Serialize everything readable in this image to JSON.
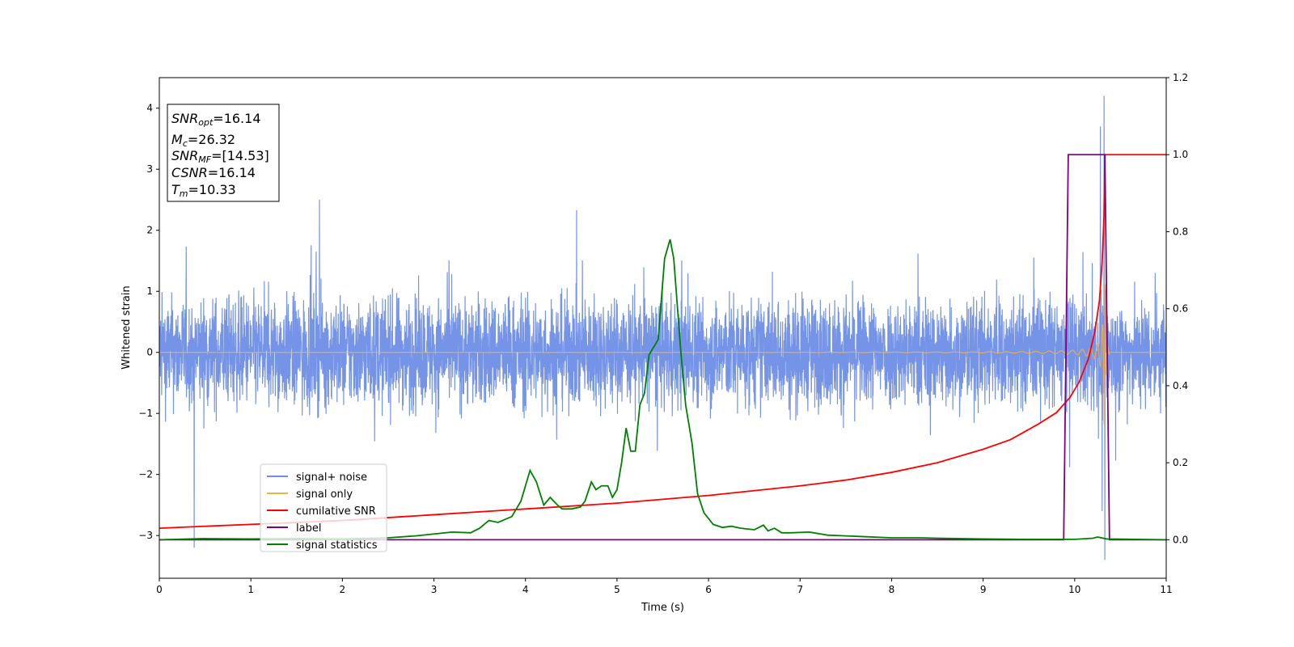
{
  "chart_data": {
    "type": "line",
    "xlabel": "Time (s)",
    "ylabel": "Whitened strain",
    "y2label": "",
    "xlim": [
      0,
      11
    ],
    "ylim": [
      -3.7,
      4.5
    ],
    "y2lim": [
      -0.1,
      1.2
    ],
    "x_ticks": [
      "0",
      "1",
      "2",
      "3",
      "4",
      "5",
      "6",
      "7",
      "8",
      "9",
      "10",
      "11"
    ],
    "y_ticks": [
      "−3",
      "−2",
      "−1",
      "0",
      "1",
      "2",
      "3",
      "4"
    ],
    "y2_ticks": [
      "0.0",
      "0.2",
      "0.4",
      "0.6",
      "0.8",
      "1.0",
      "1.2"
    ],
    "grid": false,
    "legend_position": "lower-left",
    "annotation": {
      "snr_opt": {
        "sym": "SNR",
        "sub": "opt",
        "val": "=16.14"
      },
      "mc": {
        "sym": "M",
        "sub": "c",
        "val": "=26.32"
      },
      "snr_mf": {
        "sym": "SNR",
        "sub": "MF",
        "val": "=[14.53]"
      },
      "csnr": {
        "sym": "CSNR",
        "sub": "",
        "val": "=16.14"
      },
      "tm": {
        "sym": "T",
        "sub": "m",
        "val": "=10.33"
      }
    },
    "series": [
      {
        "name": "signal+ noise",
        "axis": "left",
        "color": "#6f8ee6",
        "kind": "noise",
        "amplitude": 1.7,
        "spikes": [
          [
            0.38,
            -3.2
          ],
          [
            1.75,
            2.5
          ],
          [
            10.28,
            3.7
          ],
          [
            10.32,
            4.2
          ],
          [
            10.33,
            -3.4
          ],
          [
            10.3,
            -2.6
          ]
        ]
      },
      {
        "name": "signal only",
        "axis": "left",
        "color": "#f5b041",
        "kind": "chirp",
        "merger_time": 10.33
      },
      {
        "name": "cumilative SNR",
        "axis": "right",
        "color": "#ff0000",
        "x": [
          0,
          1,
          2,
          3,
          4,
          5,
          6,
          7,
          7.5,
          8,
          8.5,
          9,
          9.3,
          9.6,
          9.8,
          9.95,
          10.05,
          10.15,
          10.22,
          10.27,
          10.3,
          10.32,
          10.33,
          10.35,
          11
        ],
        "y": [
          0.03,
          0.04,
          0.05,
          0.065,
          0.08,
          0.095,
          0.115,
          0.14,
          0.155,
          0.175,
          0.2,
          0.235,
          0.26,
          0.3,
          0.33,
          0.37,
          0.41,
          0.47,
          0.54,
          0.62,
          0.72,
          0.84,
          1.0,
          1.0,
          1.0
        ]
      },
      {
        "name": "label",
        "axis": "right",
        "color": "#800080",
        "x": [
          0,
          9.88,
          9.93,
          10.33,
          10.38,
          11
        ],
        "y": [
          0,
          0,
          1,
          1,
          0,
          0
        ]
      },
      {
        "name": "signal statistics",
        "axis": "right",
        "color": "#008000",
        "x": [
          0,
          0.5,
          1,
          1.5,
          2,
          2.5,
          2.8,
          3,
          3.2,
          3.4,
          3.5,
          3.6,
          3.7,
          3.85,
          3.95,
          4.05,
          4.12,
          4.2,
          4.27,
          4.35,
          4.4,
          4.5,
          4.6,
          4.65,
          4.72,
          4.77,
          4.83,
          4.9,
          4.95,
          5,
          5.05,
          5.1,
          5.15,
          5.2,
          5.25,
          5.3,
          5.35,
          5.45,
          5.52,
          5.58,
          5.62,
          5.7,
          5.75,
          5.82,
          5.88,
          5.95,
          6.05,
          6.15,
          6.25,
          6.35,
          6.5,
          6.6,
          6.65,
          6.72,
          6.8,
          6.9,
          7.1,
          7.15,
          7.3,
          7.5,
          7.7,
          8,
          8.3,
          8.5,
          9,
          9.5,
          10,
          10.2,
          10.25,
          10.35,
          11
        ],
        "y": [
          0,
          0.003,
          0.002,
          0.003,
          0.002,
          0.005,
          0.01,
          0.015,
          0.02,
          0.018,
          0.03,
          0.05,
          0.045,
          0.06,
          0.1,
          0.18,
          0.15,
          0.09,
          0.11,
          0.09,
          0.08,
          0.08,
          0.085,
          0.1,
          0.15,
          0.13,
          0.14,
          0.14,
          0.11,
          0.13,
          0.2,
          0.29,
          0.23,
          0.23,
          0.35,
          0.38,
          0.48,
          0.52,
          0.73,
          0.78,
          0.73,
          0.48,
          0.35,
          0.25,
          0.12,
          0.07,
          0.04,
          0.032,
          0.035,
          0.03,
          0.026,
          0.038,
          0.023,
          0.03,
          0.018,
          0.018,
          0.02,
          0.018,
          0.012,
          0.01,
          0.008,
          0.005,
          0.005,
          0.004,
          0.002,
          0.001,
          0.001,
          0.004,
          0.007,
          0.002,
          0
        ]
      }
    ]
  }
}
